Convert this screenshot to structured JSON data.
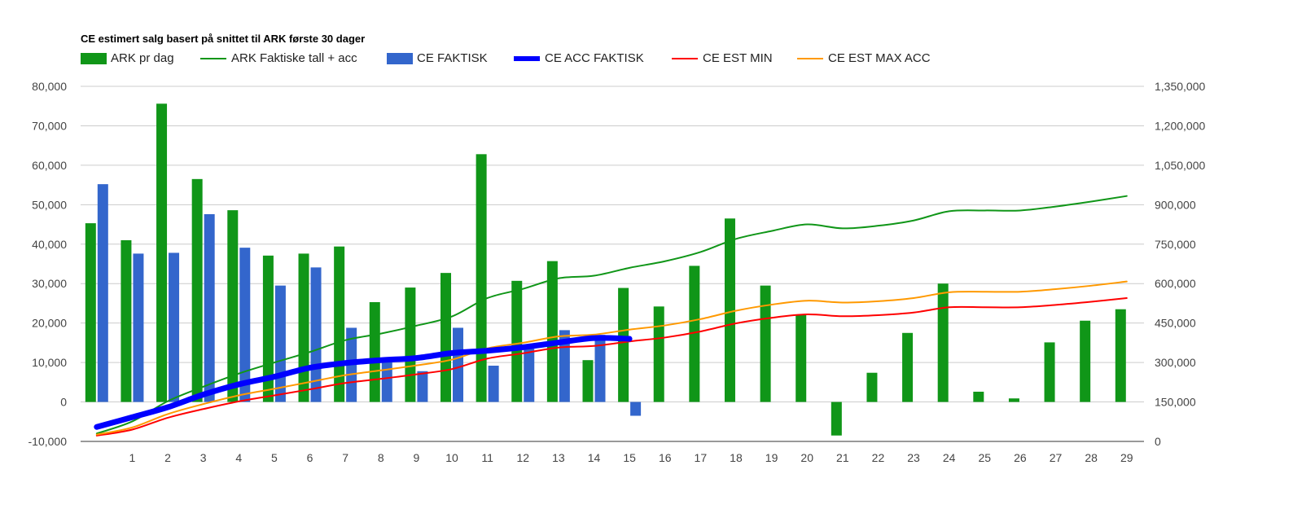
{
  "chart_data": {
    "type": "bar",
    "title": "CE estimert salg basert på snittet til ARK første 30 dager",
    "xlabel": "",
    "ylabel": "",
    "legend_position": "top-left",
    "grid": true,
    "x_tick_labels": [
      "",
      "1",
      "2",
      "3",
      "4",
      "5",
      "6",
      "7",
      "8",
      "9",
      "10",
      "11",
      "12",
      "13",
      "14",
      "15",
      "16",
      "17",
      "18",
      "19",
      "20",
      "21",
      "22",
      "23",
      "24",
      "25",
      "26",
      "27",
      "28",
      "29"
    ],
    "y_left": {
      "min": -10000,
      "max": 80000,
      "ticks": [
        -10000,
        0,
        10000,
        20000,
        30000,
        40000,
        50000,
        60000,
        70000,
        80000
      ],
      "tick_labels": [
        "-10,000",
        "0",
        "10,000",
        "20,000",
        "30,000",
        "40,000",
        "50,000",
        "60,000",
        "70,000",
        "80,000"
      ]
    },
    "y_right": {
      "min": 0,
      "max": 1350000,
      "ticks": [
        0,
        150000,
        300000,
        450000,
        600000,
        750000,
        900000,
        1050000,
        1200000,
        1350000
      ],
      "tick_labels": [
        "0",
        "150,000",
        "300,000",
        "450,000",
        "600,000",
        "750,000",
        "900,000",
        "1,050,000",
        "1,200,000",
        "1,350,000"
      ]
    },
    "series": [
      {
        "name": "ARK pr dag",
        "kind": "bar",
        "axis": "left",
        "color": "#109618",
        "values": [
          45300,
          41000,
          75600,
          56500,
          48600,
          37100,
          37600,
          39400,
          25300,
          29000,
          32700,
          62800,
          30700,
          35700,
          10600,
          28900,
          24200,
          34500,
          46500,
          29500,
          22100,
          -8500,
          7400,
          17500,
          30000,
          2600,
          900,
          15100,
          20600,
          23500
        ]
      },
      {
        "name": "ARK Faktiske tall + acc",
        "kind": "line",
        "axis": "right",
        "color": "#109618",
        "values": [
          30000,
          76000,
          153000,
          208000,
          258000,
          300000,
          340000,
          385000,
          410000,
          440000,
          475000,
          545000,
          580000,
          620000,
          630000,
          660000,
          685000,
          720000,
          770000,
          800000,
          825000,
          810000,
          820000,
          840000,
          875000,
          878000,
          878000,
          893000,
          912000,
          933000
        ]
      },
      {
        "name": "CE FAKTISK",
        "kind": "bar",
        "axis": "left",
        "color": "#3366cc",
        "values": [
          55200,
          37600,
          37800,
          47600,
          39100,
          29500,
          34100,
          18800,
          11100,
          7800,
          18800,
          9200,
          13500,
          18200,
          17000,
          -3500
        ]
      },
      {
        "name": "CE ACC FAKTISK",
        "kind": "line",
        "axis": "right",
        "color": "#0000ff",
        "thick": true,
        "values": [
          55000,
          92000,
          130000,
          178000,
          217000,
          246000,
          280000,
          298000,
          309000,
          317000,
          336000,
          345000,
          358000,
          376000,
          393000,
          390000
        ]
      },
      {
        "name": "CE EST MIN",
        "kind": "line",
        "axis": "right",
        "color": "#ff0000",
        "values": [
          22000,
          45000,
          90000,
          123000,
          152000,
          175000,
          198000,
          222000,
          238000,
          255000,
          275000,
          315000,
          335000,
          357000,
          363000,
          380000,
          395000,
          418000,
          449000,
          470000,
          483000,
          476000,
          480000,
          490000,
          510000,
          510000,
          510000,
          519000,
          531000,
          545000
        ]
      },
      {
        "name": "CE EST MAX ACC",
        "kind": "line",
        "axis": "right",
        "color": "#ff9900",
        "values": [
          26000,
          53000,
          104000,
          142000,
          175000,
          200000,
          226000,
          252000,
          270000,
          289000,
          311000,
          354000,
          375000,
          399000,
          406000,
          425000,
          441000,
          465000,
          497000,
          520000,
          535000,
          528000,
          533000,
          545000,
          567000,
          569000,
          569000,
          579000,
          592000,
          608000
        ]
      }
    ]
  }
}
